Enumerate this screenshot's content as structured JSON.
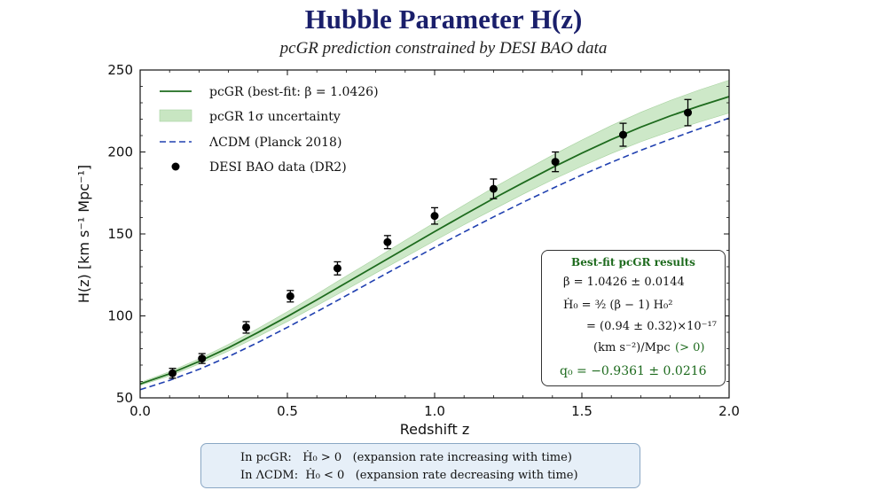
{
  "title": "Hubble Parameter H(z)",
  "subtitle": "pcGR prediction constrained by DESI BAO data",
  "colors": {
    "title": "#1a1f6b",
    "pcgr": "#1e6b1e",
    "band": "#c8e6c2",
    "lcdm": "#2040b0",
    "points": "#000000",
    "note_bg": "#e6eff8"
  },
  "chart_data": {
    "type": "line",
    "xlabel": "Redshift z",
    "ylabel": "H(z) [km s⁻¹ Mpc⁻¹]",
    "xlim": [
      0.0,
      2.0
    ],
    "ylim": [
      50,
      250
    ],
    "xticks": [
      0.0,
      0.5,
      1.0,
      1.5,
      2.0
    ],
    "xtick_labels": [
      "0.0",
      "0.5",
      "1.0",
      "1.5",
      "2.0"
    ],
    "yticks": [
      50,
      100,
      150,
      200,
      250
    ],
    "ytick_labels": [
      "50",
      "100",
      "150",
      "200",
      "250"
    ],
    "grid": false,
    "legend_position": "top-left",
    "legend": [
      {
        "key": "pcgr",
        "label": "pcGR (best-fit: β = 1.0426)"
      },
      {
        "key": "band",
        "label": "pcGR 1σ uncertainty"
      },
      {
        "key": "lcdm",
        "label": "ΛCDM (Planck 2018)"
      },
      {
        "key": "desi",
        "label": "DESI BAO data (DR2)"
      }
    ],
    "series": [
      {
        "name": "pcGR (best-fit: β = 1.0426)",
        "style": "solid",
        "x": [
          0.0,
          0.1,
          0.2,
          0.3,
          0.4,
          0.5,
          0.6,
          0.7,
          0.8,
          0.9,
          1.0,
          1.1,
          1.2,
          1.3,
          1.4,
          1.5,
          1.6,
          1.7,
          1.8,
          1.9,
          2.0
        ],
        "y": [
          58.5,
          64.7,
          72.2,
          80.6,
          89.9,
          99.6,
          109.8,
          120.2,
          130.6,
          141.0,
          151.4,
          161.6,
          171.6,
          181.2,
          190.5,
          199.3,
          207.6,
          215.2,
          222.0,
          228.1,
          233.8
        ]
      },
      {
        "name": "pcGR 1σ uncertainty",
        "style": "band",
        "x": [
          0.0,
          0.1,
          0.2,
          0.3,
          0.4,
          0.5,
          0.6,
          0.7,
          0.8,
          0.9,
          1.0,
          1.1,
          1.2,
          1.3,
          1.4,
          1.5,
          1.6,
          1.7,
          1.8,
          1.9,
          2.0
        ],
        "lower": [
          57.6,
          63.4,
          70.6,
          78.6,
          87.4,
          96.6,
          106.3,
          116.1,
          126.1,
          135.9,
          145.9,
          155.6,
          165.0,
          174.2,
          183.0,
          191.3,
          199.1,
          206.2,
          212.6,
          218.3,
          223.8
        ],
        "upper": [
          59.4,
          66.0,
          73.8,
          82.6,
          92.4,
          102.6,
          113.3,
          124.3,
          135.1,
          146.1,
          156.9,
          167.6,
          178.2,
          188.2,
          198.0,
          207.3,
          216.1,
          224.2,
          231.4,
          237.9,
          243.8
        ]
      },
      {
        "name": "ΛCDM (Planck 2018)",
        "style": "dashed",
        "x": [
          0.0,
          0.1,
          0.2,
          0.3,
          0.4,
          0.5,
          0.6,
          0.7,
          0.8,
          0.9,
          1.0,
          1.1,
          1.2,
          1.3,
          1.4,
          1.5,
          1.6,
          1.7,
          1.8,
          1.9,
          2.0
        ],
        "y": [
          55.0,
          60.7,
          67.4,
          75.2,
          83.8,
          93.0,
          102.6,
          112.4,
          122.3,
          132.1,
          141.8,
          151.2,
          160.4,
          169.3,
          177.8,
          186.0,
          193.7,
          201.0,
          207.8,
          214.2,
          220.7
        ]
      },
      {
        "name": "DESI BAO data (DR2)",
        "style": "points",
        "x": [
          0.11,
          0.21,
          0.36,
          0.51,
          0.67,
          0.84,
          1.0,
          1.2,
          1.41,
          1.64,
          1.86
        ],
        "y": [
          65.0,
          74.0,
          93.0,
          112.0,
          129.0,
          145.0,
          161.0,
          177.5,
          194.0,
          210.5,
          224.0
        ],
        "err": [
          3.0,
          3.0,
          3.5,
          3.5,
          4.0,
          4.0,
          5.0,
          6.0,
          6.0,
          7.0,
          8.0
        ]
      }
    ]
  },
  "results_box": {
    "title": "Best-fit pcGR results",
    "beta": "β = 1.0426 ± 0.0144",
    "hdot_eq": "Ḣ₀ = ³⁄₂ (β − 1) H₀²",
    "hdot_val": "= (0.94 ± 0.32)×10⁻¹⁷",
    "hdot_units": "(km s⁻²)/Mpc",
    "hdot_sign": "(> 0)",
    "q0": "q₀ = −0.9361 ± 0.0216"
  },
  "note": {
    "line1": "In pcGR:   Ḣ₀ > 0   (expansion rate increasing with time)",
    "line2": "In ΛCDM:  Ḣ₀ < 0   (expansion rate decreasing with time)"
  }
}
